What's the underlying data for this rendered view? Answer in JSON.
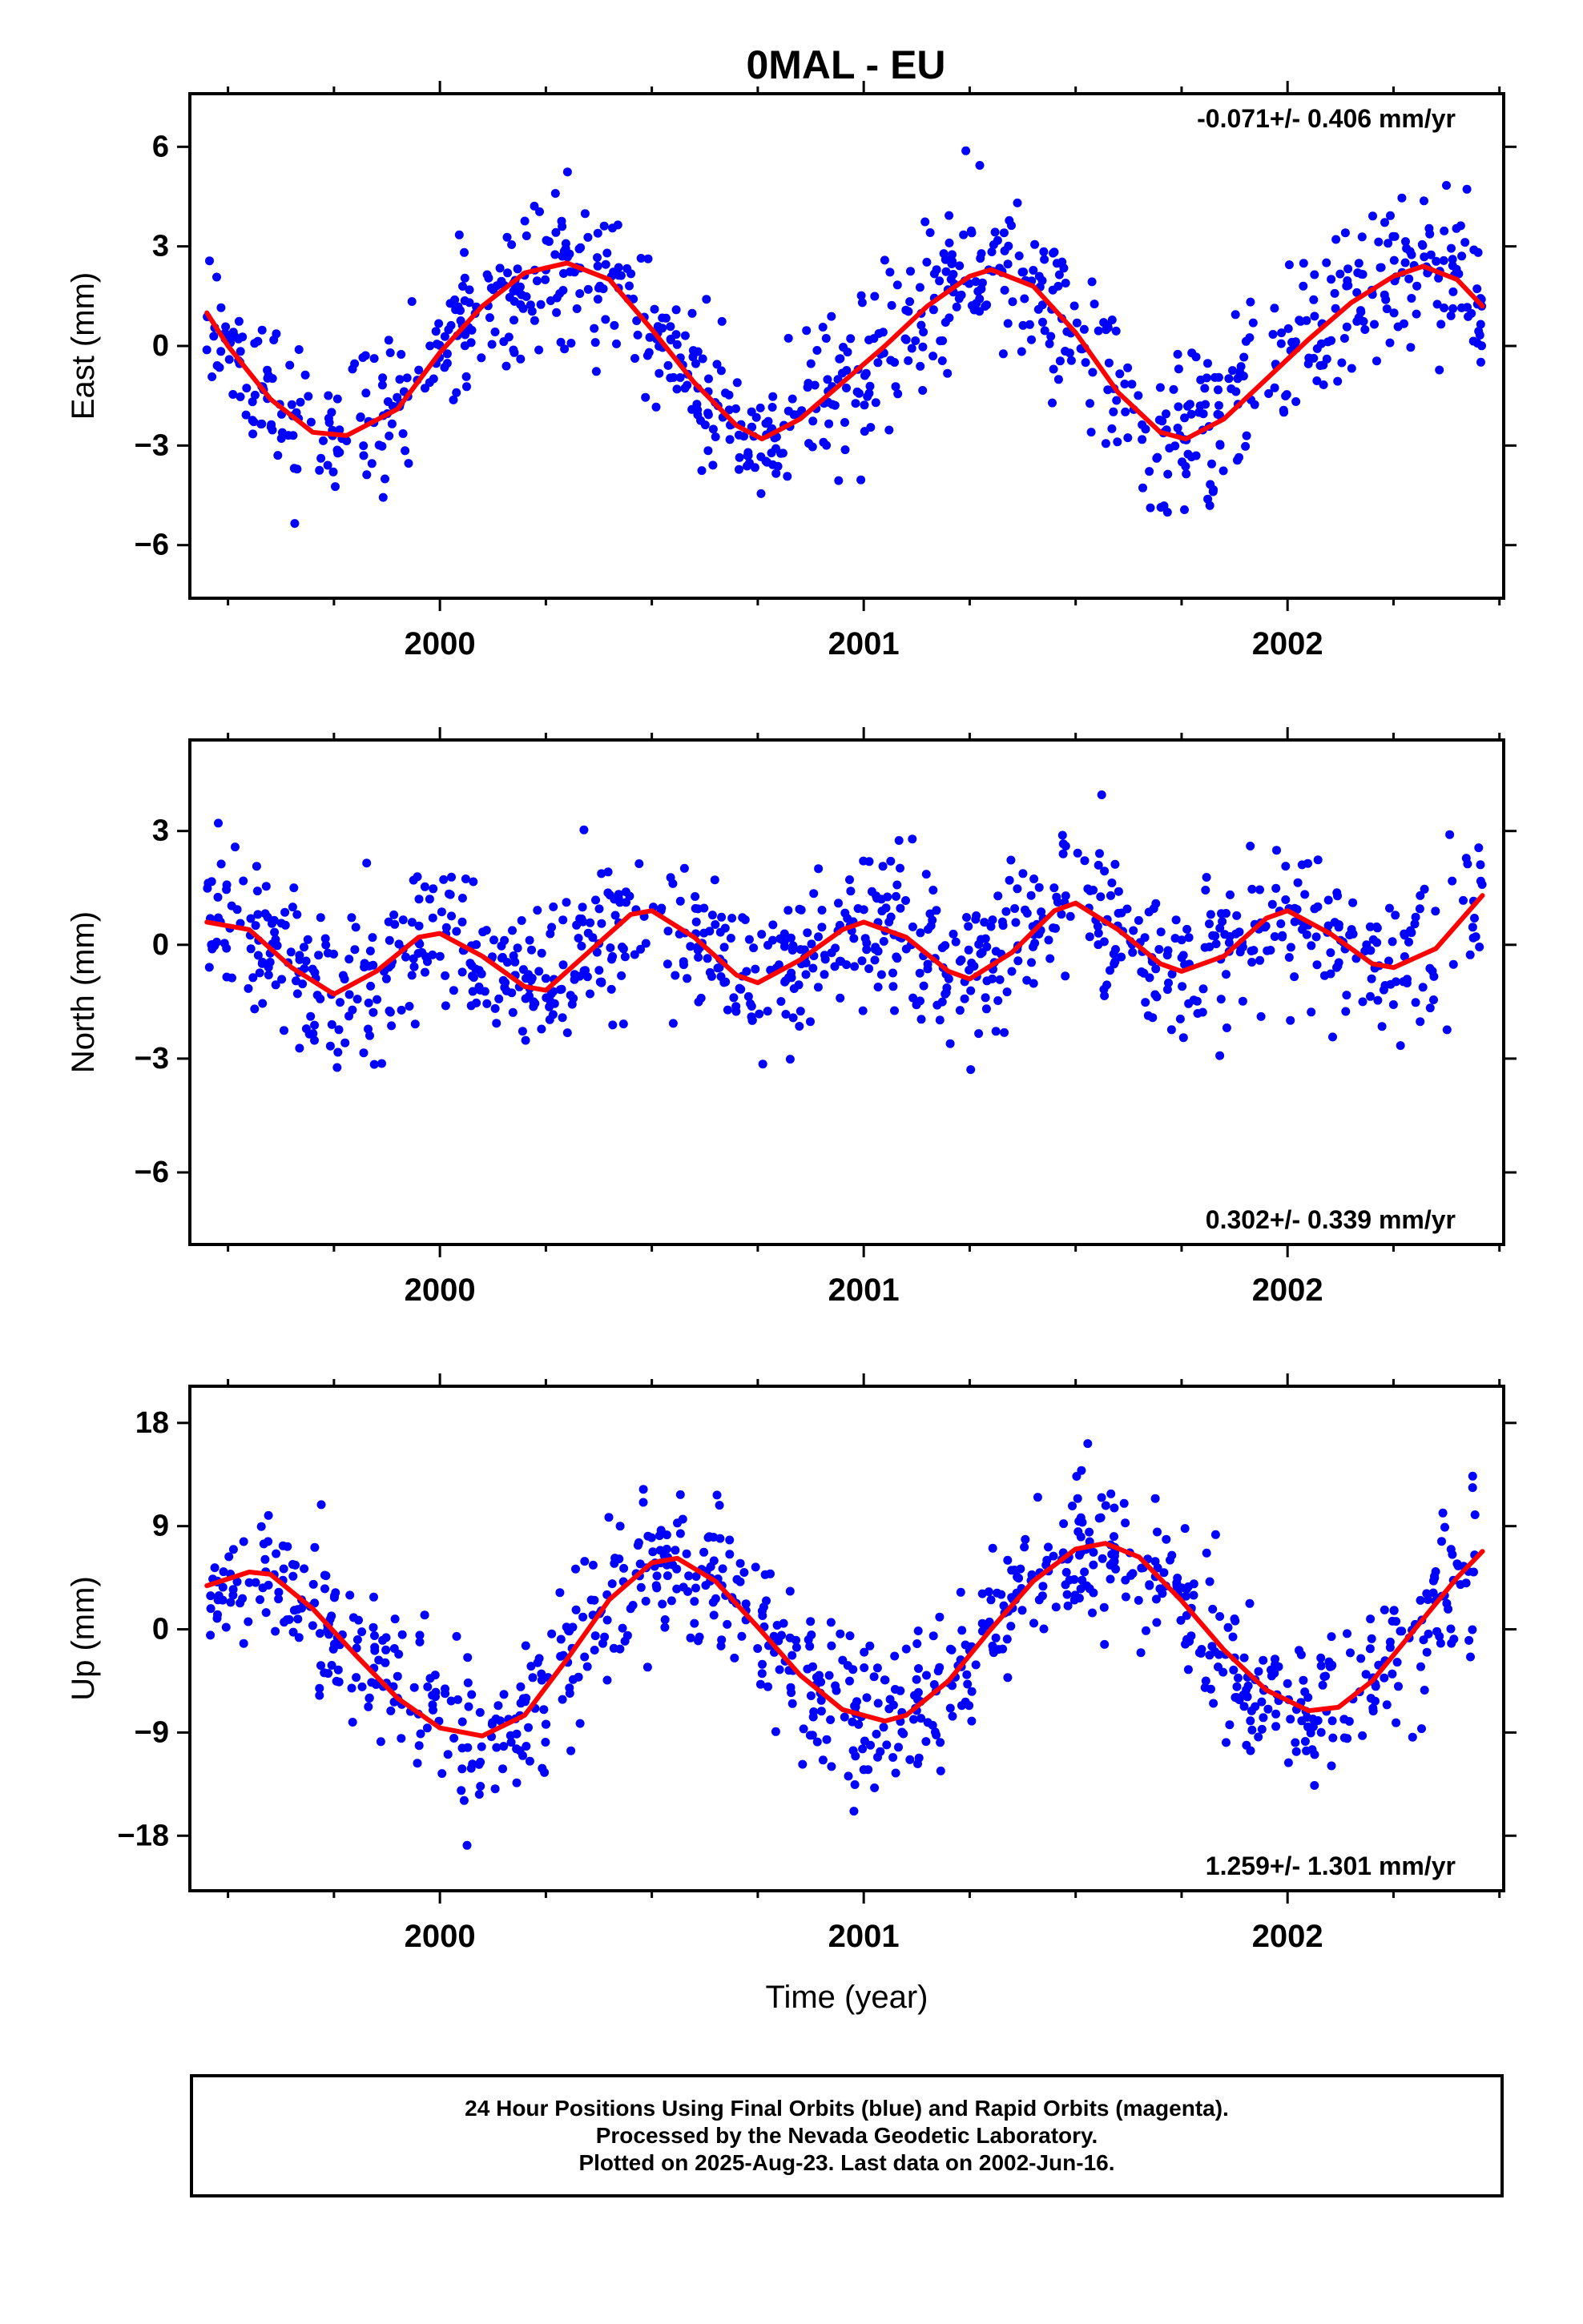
{
  "title": "0MAL - EU",
  "colors": {
    "points": "#0000ff",
    "fit": "#ff0000",
    "axis": "#000000"
  },
  "chart_data": [
    {
      "type": "scatter",
      "name": "east",
      "ylabel": "East (mm)",
      "ylim": [
        -7.6,
        7.6
      ],
      "yticks": [
        -6,
        -3,
        0,
        3,
        6
      ],
      "ytick_labels": [
        "−6",
        "−3",
        "0",
        "3",
        "6"
      ],
      "xlim": [
        1999.41,
        2002.51
      ],
      "xticks": [
        2000,
        2001,
        2002
      ],
      "xtick_labels": [
        "2000",
        "2001",
        "2002"
      ],
      "rate_label": "-0.071+/- 0.406 mm/yr",
      "rate_position": "top-right",
      "fit": {
        "x": [
          1999.45,
          1999.5,
          1999.6,
          1999.7,
          1999.78,
          1999.9,
          2000.0,
          2000.1,
          2000.2,
          2000.3,
          2000.4,
          2000.5,
          2000.6,
          2000.7,
          2000.76,
          2000.85,
          2000.95,
          2001.05,
          2001.15,
          2001.25,
          2001.3,
          2001.4,
          2001.5,
          2001.6,
          2001.7,
          2001.76,
          2001.85,
          2001.95,
          2002.05,
          2002.15,
          2002.25,
          2002.32,
          2002.4,
          2002.46
        ],
        "y": [
          1.0,
          0.0,
          -1.6,
          -2.6,
          -2.7,
          -1.9,
          -0.2,
          1.2,
          2.2,
          2.5,
          2.0,
          0.5,
          -1.1,
          -2.4,
          -2.8,
          -2.2,
          -1.1,
          0.0,
          1.2,
          2.1,
          2.3,
          1.8,
          0.4,
          -1.4,
          -2.6,
          -2.8,
          -2.2,
          -1.0,
          0.2,
          1.3,
          2.1,
          2.4,
          2.0,
          1.2
        ]
      }
    },
    {
      "type": "scatter",
      "name": "north",
      "ylabel": "North (mm)",
      "ylim": [
        -7.9,
        5.4
      ],
      "yticks": [
        -6,
        -3,
        0,
        3
      ],
      "ytick_labels": [
        "−6",
        "−3",
        "0",
        "3"
      ],
      "xlim": [
        1999.41,
        2002.51
      ],
      "xticks": [
        2000,
        2001,
        2002
      ],
      "xtick_labels": [
        "2000",
        "2001",
        "2002"
      ],
      "rate_label": "0.302+/- 0.339 mm/yr",
      "rate_position": "bottom-right",
      "fit": {
        "x": [
          1999.45,
          1999.55,
          1999.65,
          1999.75,
          1999.85,
          1999.95,
          2000.0,
          2000.1,
          2000.2,
          2000.25,
          2000.35,
          2000.45,
          2000.5,
          2000.6,
          2000.7,
          2000.75,
          2000.85,
          2000.95,
          2001.0,
          2001.1,
          2001.2,
          2001.25,
          2001.35,
          2001.45,
          2001.5,
          2001.6,
          2001.7,
          2001.75,
          2001.85,
          2001.95,
          2002.0,
          2002.1,
          2002.2,
          2002.25,
          2002.35,
          2002.46
        ],
        "y": [
          0.6,
          0.4,
          -0.6,
          -1.3,
          -0.7,
          0.2,
          0.3,
          -0.3,
          -1.1,
          -1.2,
          -0.2,
          0.8,
          0.9,
          0.2,
          -0.8,
          -1.0,
          -0.4,
          0.4,
          0.6,
          0.2,
          -0.7,
          -0.9,
          -0.2,
          0.9,
          1.1,
          0.4,
          -0.5,
          -0.7,
          -0.3,
          0.7,
          0.9,
          0.3,
          -0.5,
          -0.6,
          -0.1,
          1.3
        ]
      }
    },
    {
      "type": "scatter",
      "name": "up",
      "ylabel": "Up (mm)",
      "ylim": [
        -22.8,
        21.2
      ],
      "yticks": [
        -18,
        -9,
        0,
        9,
        18
      ],
      "ytick_labels": [
        "−18",
        "−9",
        "0",
        "9",
        "18"
      ],
      "xlim": [
        1999.41,
        2002.51
      ],
      "xticks": [
        2000,
        2001,
        2002
      ],
      "xtick_labels": [
        "2000",
        "2001",
        "2002"
      ],
      "xlabel": "Time (year)",
      "rate_label": "1.259+/- 1.301 mm/yr",
      "rate_position": "bottom-right",
      "fit": {
        "x": [
          1999.45,
          1999.55,
          1999.6,
          1999.7,
          1999.8,
          1999.9,
          2000.0,
          2000.1,
          2000.2,
          2000.3,
          2000.4,
          2000.5,
          2000.56,
          2000.65,
          2000.75,
          2000.85,
          2000.95,
          2001.05,
          2001.1,
          2001.2,
          2001.3,
          2001.4,
          2001.5,
          2001.57,
          2001.65,
          2001.75,
          2001.85,
          2001.95,
          2002.05,
          2002.12,
          2002.2,
          2002.3,
          2002.4,
          2002.46
        ],
        "y": [
          3.8,
          5.0,
          4.8,
          1.8,
          -2.2,
          -6.0,
          -8.6,
          -9.3,
          -7.5,
          -2.6,
          2.6,
          5.8,
          6.2,
          4.2,
          0.2,
          -4.0,
          -7.0,
          -8.0,
          -7.5,
          -4.5,
          0.0,
          4.2,
          7.0,
          7.5,
          6.3,
          2.5,
          -1.8,
          -5.3,
          -7.1,
          -6.8,
          -4.5,
          0.0,
          4.5,
          6.8
        ]
      }
    }
  ],
  "caption": {
    "line1": "24 Hour Positions Using Final Orbits (blue) and Rapid Orbits (magenta).",
    "line2": "Processed by the Nevada Geodetic Laboratory.",
    "line3": "Plotted on 2025-Aug-23. Last data on 2002-Jun-16."
  }
}
